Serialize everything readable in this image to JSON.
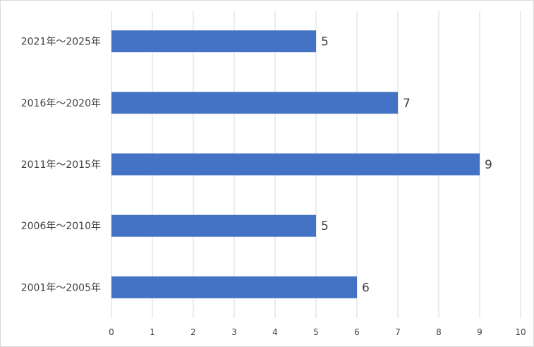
{
  "chart_data": {
    "type": "bar",
    "orientation": "horizontal",
    "categories": [
      "2001年～2005年",
      "2006年～2010年",
      "2011年～2015年",
      "2016年～2020年",
      "2021年～2025年"
    ],
    "values": [
      6,
      5,
      9,
      7,
      5
    ],
    "xlim": [
      0,
      10
    ],
    "x_ticks": [
      "0",
      "1",
      "2",
      "3",
      "4",
      "5",
      "6",
      "7",
      "8",
      "9",
      "10"
    ],
    "data_labels": [
      "6",
      "5",
      "9",
      "7",
      "5"
    ],
    "grid": true,
    "legend": "none",
    "bar_color": "#4472c4",
    "title": "",
    "xlabel": "",
    "ylabel": ""
  }
}
